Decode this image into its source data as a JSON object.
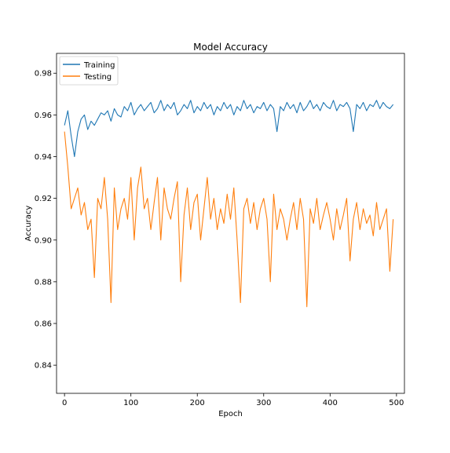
{
  "chart_data": {
    "type": "line",
    "title": "Model Accuracy",
    "xlabel": "Epoch",
    "ylabel": "Accuracy",
    "xlim": [
      -12,
      512
    ],
    "ylim": [
      0.8265,
      0.9895
    ],
    "xticks": [
      0,
      100,
      200,
      300,
      400,
      500
    ],
    "yticks": [
      0.84,
      0.86,
      0.88,
      0.9,
      0.92,
      0.94,
      0.96,
      0.98
    ],
    "legend_position": "top-left",
    "grid": false,
    "series": [
      {
        "name": "Training",
        "color": "#1f77b4",
        "x_start": 0,
        "x_step": 5,
        "values": [
          0.955,
          0.962,
          0.95,
          0.94,
          0.952,
          0.958,
          0.96,
          0.953,
          0.957,
          0.955,
          0.958,
          0.961,
          0.96,
          0.962,
          0.957,
          0.963,
          0.96,
          0.959,
          0.964,
          0.962,
          0.966,
          0.96,
          0.963,
          0.965,
          0.962,
          0.964,
          0.966,
          0.961,
          0.963,
          0.967,
          0.962,
          0.965,
          0.963,
          0.966,
          0.96,
          0.962,
          0.965,
          0.963,
          0.967,
          0.961,
          0.964,
          0.962,
          0.966,
          0.963,
          0.965,
          0.96,
          0.964,
          0.962,
          0.966,
          0.963,
          0.965,
          0.96,
          0.964,
          0.962,
          0.967,
          0.963,
          0.965,
          0.961,
          0.964,
          0.963,
          0.966,
          0.962,
          0.965,
          0.963,
          0.952,
          0.964,
          0.962,
          0.966,
          0.963,
          0.965,
          0.961,
          0.966,
          0.962,
          0.964,
          0.967,
          0.963,
          0.965,
          0.962,
          0.966,
          0.964,
          0.963,
          0.967,
          0.962,
          0.965,
          0.964,
          0.966,
          0.963,
          0.952,
          0.965,
          0.963,
          0.966,
          0.962,
          0.965,
          0.964,
          0.967,
          0.963,
          0.966,
          0.964,
          0.963,
          0.965
        ]
      },
      {
        "name": "Testing",
        "color": "#ff7f0e",
        "x_start": 0,
        "x_step": 5,
        "values": [
          0.952,
          0.935,
          0.915,
          0.92,
          0.925,
          0.912,
          0.918,
          0.905,
          0.91,
          0.882,
          0.92,
          0.915,
          0.93,
          0.91,
          0.87,
          0.925,
          0.905,
          0.915,
          0.92,
          0.91,
          0.93,
          0.9,
          0.925,
          0.935,
          0.915,
          0.92,
          0.905,
          0.918,
          0.93,
          0.9,
          0.925,
          0.915,
          0.91,
          0.92,
          0.928,
          0.88,
          0.912,
          0.925,
          0.905,
          0.918,
          0.922,
          0.9,
          0.915,
          0.93,
          0.91,
          0.92,
          0.905,
          0.915,
          0.908,
          0.922,
          0.91,
          0.925,
          0.9,
          0.87,
          0.915,
          0.92,
          0.908,
          0.918,
          0.905,
          0.915,
          0.92,
          0.91,
          0.88,
          0.922,
          0.905,
          0.915,
          0.91,
          0.9,
          0.91,
          0.918,
          0.905,
          0.92,
          0.91,
          0.868,
          0.915,
          0.908,
          0.92,
          0.905,
          0.912,
          0.918,
          0.91,
          0.9,
          0.915,
          0.905,
          0.912,
          0.92,
          0.89,
          0.91,
          0.918,
          0.905,
          0.915,
          0.908,
          0.912,
          0.902,
          0.918,
          0.905,
          0.91,
          0.915,
          0.885,
          0.91
        ]
      }
    ]
  }
}
